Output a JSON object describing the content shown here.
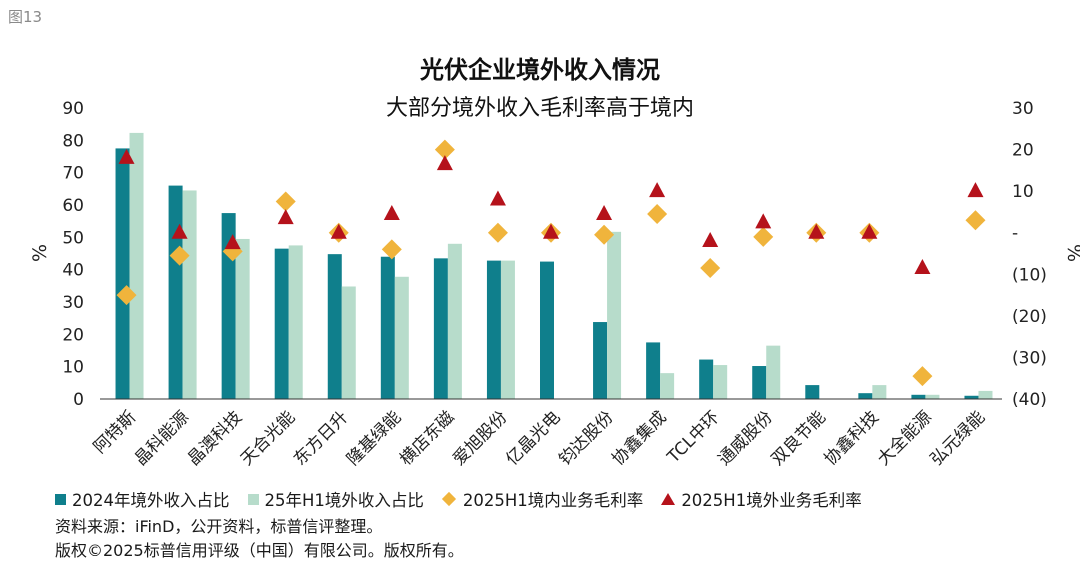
{
  "figure_label": "图13",
  "colors": {
    "series_2024": "#0f7f8c",
    "series_25h1": "#b7dccb",
    "domestic_margin": "#f0b43c",
    "overseas_margin": "#b5121b"
  },
  "chart_data": {
    "type": "bar",
    "title": "光伏企业境外收入情况",
    "subtitle": "大部分境外收入毛利率高于境内",
    "ylabel_left": "%",
    "ylabel_right": "%",
    "ylim_left": [
      0,
      90
    ],
    "ylim_right": [
      -40,
      30
    ],
    "left_ticks": [
      "0",
      "10",
      "20",
      "30",
      "40",
      "50",
      "60",
      "70",
      "80",
      "90"
    ],
    "right_ticks": [
      {
        "value": 30,
        "label": "30"
      },
      {
        "value": 20,
        "label": "20"
      },
      {
        "value": 10,
        "label": "10"
      },
      {
        "value": 0,
        "label": "-"
      },
      {
        "value": -10,
        "label": "(10)"
      },
      {
        "value": -20,
        "label": "(20)"
      },
      {
        "value": -30,
        "label": "(30)"
      },
      {
        "value": -40,
        "label": "(40)"
      }
    ],
    "grid": false,
    "legend_position": "bottom",
    "categories": [
      "阿特斯",
      "晶科能源",
      "晶澳科技",
      "天合光能",
      "东方日升",
      "隆基绿能",
      "横店东磁",
      "爱旭股份",
      "亿晶光电",
      "钧达股份",
      "协鑫集成",
      "TCL中环",
      "通威股份",
      "双良节能",
      "协鑫科技",
      "大全能源",
      "弘元绿能"
    ],
    "series": [
      {
        "name": "2024年境外收入占比",
        "kind": "bar",
        "axis": "left",
        "values": [
          77.5,
          66,
          57.5,
          46.5,
          44.8,
          44,
          43.5,
          42.8,
          42.5,
          23.8,
          17.5,
          12.2,
          10.2,
          4.3,
          1.8,
          1.3,
          1
        ]
      },
      {
        "name": "25年H1境外收入占比",
        "kind": "bar",
        "axis": "left",
        "values": [
          82.3,
          64.5,
          49.5,
          47.5,
          34.8,
          37.8,
          48,
          42.8,
          null,
          51.7,
          8,
          10.5,
          16.5,
          null,
          4.3,
          1.3,
          2.5
        ]
      },
      {
        "name": "2025H1境内业务毛利率",
        "kind": "diamond",
        "axis": "right",
        "values": [
          -15,
          -5.5,
          -4.5,
          7.5,
          0,
          -4,
          20,
          0,
          0,
          -0.5,
          4.5,
          -8.5,
          -1,
          0,
          0,
          -34.5,
          3
        ]
      },
      {
        "name": "2025H1境外业务毛利率",
        "kind": "triangle",
        "axis": "right",
        "values": [
          18,
          0,
          -2.5,
          3.5,
          0,
          4.5,
          16.5,
          8,
          0,
          4.5,
          10,
          -2,
          2.5,
          0,
          0,
          -8.5,
          10
        ]
      }
    ]
  },
  "footer": {
    "source": "资料来源：iFinD，公开资料，标普信评整理。",
    "copyright": "版权©2025标普信用评级（中国）有限公司。版权所有。"
  }
}
